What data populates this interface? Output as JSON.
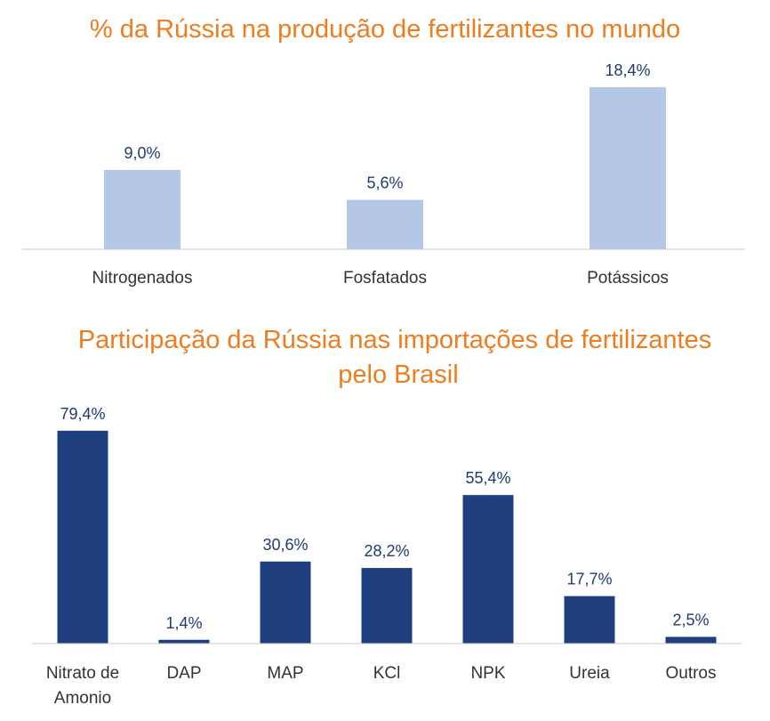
{
  "chart_data": [
    {
      "type": "bar",
      "title": "% da Rússia na produção de fertilizantes no mundo",
      "categories": [
        "Nitrogenados",
        "Fosfatados",
        "Potássicos"
      ],
      "values": [
        9.0,
        5.6,
        18.4
      ],
      "value_labels": [
        "9,0%",
        "5,6%",
        "18,4%"
      ],
      "unit": "%",
      "xlabel": "",
      "ylabel": "",
      "ylim": [
        0,
        20
      ],
      "grid": false,
      "legend": "none",
      "bar_color": "#b4c7e7",
      "label_color": "#1f3b6e"
    },
    {
      "type": "bar",
      "title": "Participação da Rússia nas importações de fertilizantes pelo Brasil",
      "title_lines": [
        "Participação da Rússia nas importações de fertilizantes",
        "pelo Brasil"
      ],
      "categories": [
        "Nitrato de Amonio",
        "DAP",
        "MAP",
        "KCl",
        "NPK",
        "Ureia",
        "Outros"
      ],
      "category_lines": [
        [
          "Nitrato de",
          "Amonio"
        ],
        [
          "DAP"
        ],
        [
          "MAP"
        ],
        [
          "KCl"
        ],
        [
          "NPK"
        ],
        [
          "Ureia"
        ],
        [
          "Outros"
        ]
      ],
      "values": [
        79.4,
        1.4,
        30.6,
        28.2,
        55.4,
        17.7,
        2.5
      ],
      "value_labels": [
        "79,4%",
        "1,4%",
        "30,6%",
        "28,2%",
        "55,4%",
        "17,7%",
        "2,5%"
      ],
      "unit": "%",
      "xlabel": "",
      "ylabel": "",
      "ylim": [
        0,
        85
      ],
      "grid": false,
      "legend": "none",
      "bar_color": "#1f3f7e",
      "label_color": "#1f3b6e"
    }
  ],
  "colors": {
    "title": "#ee7d1f",
    "axis": "#c8c8c8",
    "tick_text": "#333333"
  }
}
